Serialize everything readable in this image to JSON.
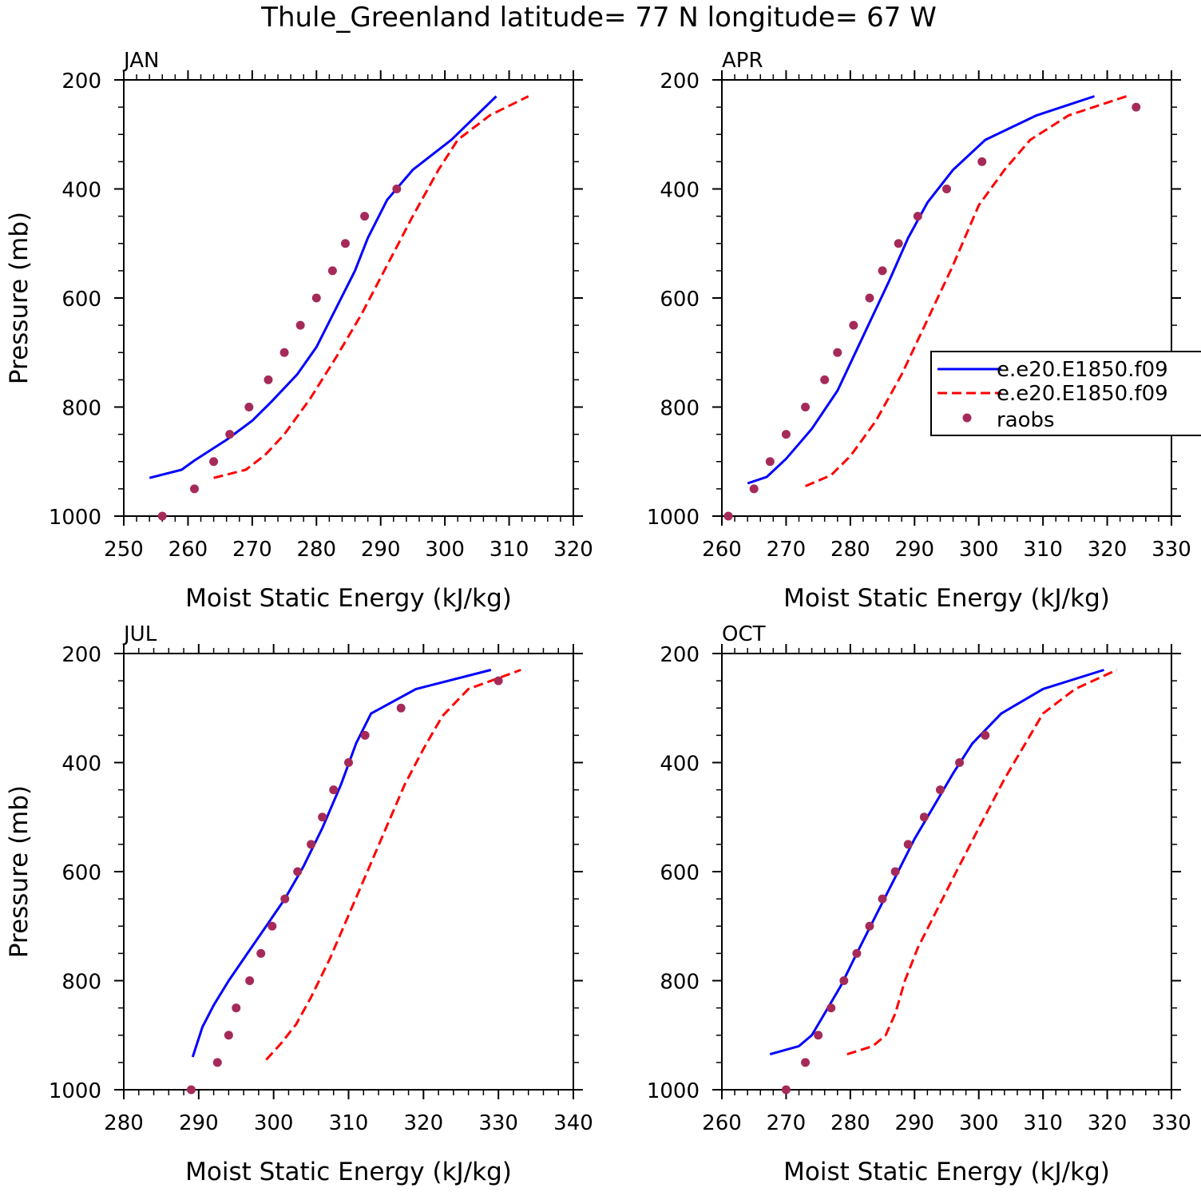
{
  "title": "Thule_Greenland  latitude= 77 N longitude= 67 W",
  "colors": {
    "model_a": "#0000ff",
    "model_b": "#ff0000",
    "raobs": "#a52a5a"
  },
  "legend": {
    "placement": "right-middle (APR panel)",
    "entries": [
      "e.e20.E1850.f09",
      "e.e20.E1850.f09",
      "raobs"
    ]
  },
  "chart_data": [
    {
      "type": "line",
      "label": "JAN",
      "xlabel": "Moist Static Energy (kJ/kg)",
      "ylabel": "Pressure (mb)",
      "xlim": [
        250,
        320
      ],
      "ylim": [
        200,
        1000
      ],
      "y_reversed": true,
      "xticks": [
        250,
        260,
        270,
        280,
        290,
        300,
        310,
        320
      ],
      "yticks": [
        200,
        400,
        600,
        800,
        1000
      ],
      "series": [
        {
          "name": "e.e20.E1850.f09",
          "style": "solid",
          "color": "#0000ff",
          "x": [
            254,
            259,
            261,
            266,
            270,
            273,
            277,
            280,
            283,
            286,
            288,
            291,
            295,
            301,
            308
          ],
          "y": [
            930,
            915,
            898,
            860,
            825,
            790,
            740,
            690,
            620,
            550,
            490,
            420,
            365,
            310,
            230
          ]
        },
        {
          "name": "e.e20.E1850.f09",
          "style": "dashed",
          "color": "#ff0000",
          "x": [
            264,
            269,
            272,
            275,
            279,
            283,
            287,
            291,
            295,
            299,
            302,
            307,
            313
          ],
          "y": [
            930,
            915,
            888,
            850,
            785,
            710,
            630,
            540,
            450,
            365,
            310,
            265,
            230
          ]
        },
        {
          "name": "raobs",
          "style": "markers",
          "color": "#a52a5a",
          "x": [
            256,
            261,
            264,
            266.5,
            269.5,
            272.5,
            275,
            277.5,
            280,
            282.5,
            284.5,
            287.5,
            292.5
          ],
          "y": [
            1000,
            950,
            900,
            850,
            800,
            750,
            700,
            650,
            600,
            550,
            500,
            450,
            400
          ]
        }
      ]
    },
    {
      "type": "line",
      "label": "APR",
      "xlabel": "Moist Static Energy (kJ/kg)",
      "ylabel": "",
      "xlim": [
        260,
        330
      ],
      "ylim": [
        200,
        1000
      ],
      "y_reversed": true,
      "xticks": [
        260,
        270,
        280,
        290,
        300,
        310,
        320,
        330
      ],
      "yticks": [
        200,
        400,
        600,
        800,
        1000
      ],
      "series": [
        {
          "name": "e.e20.E1850.f09",
          "style": "solid",
          "color": "#0000ff",
          "x": [
            264,
            267,
            270,
            274,
            278,
            282,
            286,
            289,
            292,
            296,
            301,
            309,
            318
          ],
          "y": [
            940,
            928,
            895,
            840,
            770,
            670,
            570,
            490,
            425,
            365,
            310,
            265,
            230
          ]
        },
        {
          "name": "e.e20.E1850.f09",
          "style": "dashed",
          "color": "#ff0000",
          "x": [
            273,
            277,
            280,
            284,
            288,
            292,
            296,
            300,
            304,
            308,
            314,
            323
          ],
          "y": [
            945,
            925,
            890,
            825,
            740,
            640,
            540,
            430,
            365,
            310,
            265,
            230
          ]
        },
        {
          "name": "raobs",
          "style": "markers",
          "color": "#a52a5a",
          "x": [
            261,
            265,
            267.5,
            270,
            273,
            276,
            278,
            280.5,
            283,
            285,
            287.5,
            290.5,
            295,
            300.5,
            324.5
          ],
          "y": [
            1000,
            950,
            900,
            850,
            800,
            750,
            700,
            650,
            600,
            550,
            500,
            450,
            400,
            350,
            250
          ]
        }
      ]
    },
    {
      "type": "line",
      "label": "JUL",
      "xlabel": "Moist Static Energy (kJ/kg)",
      "ylabel": "Pressure (mb)",
      "xlim": [
        280,
        340
      ],
      "ylim": [
        200,
        1000
      ],
      "y_reversed": true,
      "xticks": [
        280,
        290,
        300,
        310,
        320,
        330,
        340
      ],
      "yticks": [
        200,
        400,
        600,
        800,
        1000
      ],
      "series": [
        {
          "name": "e.e20.E1850.f09",
          "style": "solid",
          "color": "#0000ff",
          "x": [
            289.2,
            290.5,
            292,
            294,
            296.5,
            299,
            301.5,
            304,
            306.5,
            309,
            311,
            313,
            319,
            329
          ],
          "y": [
            940,
            885,
            845,
            800,
            750,
            700,
            650,
            590,
            520,
            440,
            365,
            310,
            265,
            230
          ]
        },
        {
          "name": "e.e20.E1850.f09",
          "style": "dashed",
          "color": "#ff0000",
          "x": [
            299,
            301,
            303,
            305,
            307.5,
            310,
            312.5,
            315,
            317.5,
            320,
            322.5,
            326,
            333
          ],
          "y": [
            945,
            915,
            880,
            830,
            760,
            680,
            600,
            520,
            440,
            375,
            315,
            265,
            230
          ]
        },
        {
          "name": "raobs",
          "style": "markers",
          "color": "#a52a5a",
          "x": [
            289,
            292.5,
            294,
            295,
            296.8,
            298.3,
            299.8,
            301.5,
            303.2,
            305,
            306.5,
            308,
            310,
            312.2,
            317,
            330
          ],
          "y": [
            1000,
            950,
            900,
            850,
            800,
            750,
            700,
            650,
            600,
            550,
            500,
            450,
            400,
            350,
            300,
            250
          ]
        }
      ]
    },
    {
      "type": "line",
      "label": "OCT",
      "xlabel": "Moist Static Energy (kJ/kg)",
      "ylabel": "",
      "xlim": [
        260,
        330
      ],
      "ylim": [
        200,
        1000
      ],
      "y_reversed": true,
      "xticks": [
        260,
        270,
        280,
        290,
        300,
        310,
        320,
        330
      ],
      "yticks": [
        200,
        400,
        600,
        800,
        1000
      ],
      "series": [
        {
          "name": "e.e20.E1850.f09",
          "style": "solid",
          "color": "#0000ff",
          "x": [
            267.5,
            272,
            274,
            276,
            278.5,
            281,
            284,
            287,
            290,
            293,
            296,
            299,
            303.5,
            310,
            319.5
          ],
          "y": [
            935,
            920,
            900,
            860,
            810,
            750,
            680,
            610,
            540,
            480,
            420,
            365,
            310,
            265,
            230
          ]
        },
        {
          "name": "e.e20.E1850.f09",
          "style": "dashed",
          "color": "#ff0000",
          "x": [
            279.5,
            283.5,
            285.5,
            287,
            288.5,
            290.5,
            293.5,
            296.5,
            300,
            304,
            310,
            315,
            321.5
          ],
          "y": [
            935,
            920,
            900,
            860,
            800,
            740,
            670,
            600,
            520,
            430,
            310,
            265,
            230
          ]
        },
        {
          "name": "raobs",
          "style": "markers",
          "color": "#a52a5a",
          "x": [
            270,
            273,
            275,
            277,
            279,
            281,
            283,
            285,
            287,
            289,
            291.5,
            294,
            297,
            301
          ],
          "y": [
            1000,
            950,
            900,
            850,
            800,
            750,
            700,
            650,
            600,
            550,
            500,
            450,
            400,
            350
          ]
        }
      ]
    }
  ]
}
